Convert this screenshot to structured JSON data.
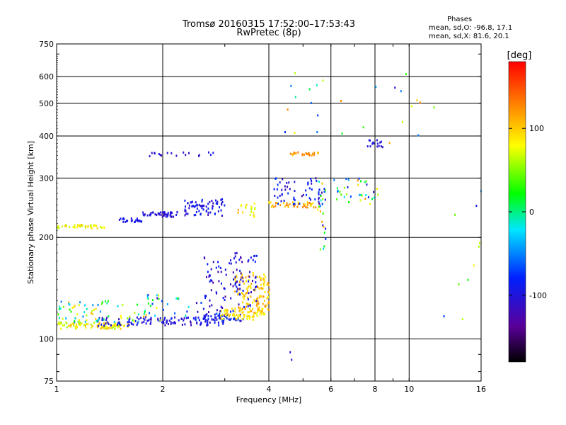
{
  "header": {
    "title_line1": "Tromsø 20160315 17:52:00–17:53:43",
    "title_line2": "RwPretec (8p)"
  },
  "info": {
    "heading": "Phases",
    "line1": "mean, sd,O: -96.8, 17.1",
    "line2": "mean, sd,X:  81.6, 20.1"
  },
  "colorbar": {
    "unit": "[deg]",
    "range": [
      -180,
      180
    ],
    "ticks": [
      {
        "value": 100,
        "label": "100"
      },
      {
        "value": 0,
        "label": "0"
      },
      {
        "value": -100,
        "label": "-100"
      }
    ]
  },
  "chart_data": {
    "type": "scatter",
    "xlabel": "Frequency [MHz]",
    "ylabel": "Stationary phase Virtual Height [km]",
    "xscale": "log",
    "yscale": "log",
    "xlim": [
      1,
      16
    ],
    "ylim": [
      75,
      750
    ],
    "xticks": [
      {
        "value": 1,
        "label": "1"
      },
      {
        "value": 2,
        "label": "2"
      },
      {
        "value": 4,
        "label": "4"
      },
      {
        "value": 6,
        "label": "6"
      },
      {
        "value": 8,
        "label": "8"
      },
      {
        "value": 10,
        "label": "10"
      },
      {
        "value": 16,
        "label": "16"
      }
    ],
    "yticks": [
      {
        "value": 75,
        "label": "75"
      },
      {
        "value": 100,
        "label": "100"
      },
      {
        "value": 200,
        "label": "200"
      },
      {
        "value": 300,
        "label": "300"
      },
      {
        "value": 400,
        "label": "400"
      },
      {
        "value": 500,
        "label": "500"
      },
      {
        "value": 600,
        "label": "600"
      },
      {
        "value": 750,
        "label": "750"
      }
    ],
    "grid": true,
    "color_by": "phase [deg]",
    "groups": [
      {
        "x_range": [
          1.0,
          1.6
        ],
        "y_range": [
          107,
          112
        ],
        "n": 90,
        "phase_range": [
          50,
          110
        ]
      },
      {
        "x_range": [
          1.3,
          3.0
        ],
        "y_range": [
          109,
          116
        ],
        "n": 120,
        "phase_range": [
          -120,
          -80
        ]
      },
      {
        "x_range": [
          2.6,
          3.4
        ],
        "y_range": [
          113,
          119
        ],
        "n": 50,
        "phase_range": [
          -110,
          -60
        ]
      },
      {
        "x_range": [
          2.9,
          3.9
        ],
        "y_range": [
          114,
          123
        ],
        "n": 70,
        "phase_range": [
          70,
          110
        ]
      },
      {
        "x_range": [
          3.2,
          4.05
        ],
        "y_range": [
          120,
          158
        ],
        "n": 120,
        "phase_range": [
          80,
          125
        ]
      },
      {
        "x_range": [
          2.6,
          3.7
        ],
        "y_range": [
          120,
          180
        ],
        "n": 110,
        "phase_range": [
          -130,
          -80
        ]
      },
      {
        "x_range": [
          1.0,
          1.8
        ],
        "y_range": [
          112,
          130
        ],
        "n": 70,
        "phase_range": [
          -60,
          110
        ]
      },
      {
        "x_range": [
          1.8,
          2.6
        ],
        "y_range": [
          113,
          135
        ],
        "n": 30,
        "phase_range": [
          -120,
          80
        ]
      },
      {
        "x_range": [
          1.0,
          1.4
        ],
        "y_range": [
          213,
          218
        ],
        "n": 40,
        "phase_range": [
          60,
          110
        ]
      },
      {
        "x_range": [
          1.5,
          1.75
        ],
        "y_range": [
          222,
          228
        ],
        "n": 25,
        "phase_range": [
          -110,
          -80
        ]
      },
      {
        "x_range": [
          1.75,
          2.2
        ],
        "y_range": [
          230,
          238
        ],
        "n": 50,
        "phase_range": [
          -120,
          -90
        ]
      },
      {
        "x_range": [
          2.3,
          3.0
        ],
        "y_range": [
          232,
          260
        ],
        "n": 70,
        "phase_range": [
          -120,
          -80
        ]
      },
      {
        "x_range": [
          3.2,
          3.7
        ],
        "y_range": [
          230,
          255
        ],
        "n": 20,
        "phase_range": [
          60,
          120
        ]
      },
      {
        "x_range": [
          1.8,
          2.8
        ],
        "y_range": [
          345,
          358
        ],
        "n": 18,
        "phase_range": [
          -120,
          -90
        ]
      },
      {
        "x_range": [
          4.0,
          5.6
        ],
        "y_range": [
          245,
          255
        ],
        "n": 45,
        "phase_range": [
          80,
          140
        ]
      },
      {
        "x_range": [
          4.1,
          5.8
        ],
        "y_range": [
          250,
          300
        ],
        "n": 60,
        "phase_range": [
          -120,
          -70
        ]
      },
      {
        "x_range": [
          4.6,
          5.6
        ],
        "y_range": [
          350,
          358
        ],
        "n": 25,
        "phase_range": [
          100,
          140
        ]
      },
      {
        "x_range": [
          5.5,
          5.8
        ],
        "y_range": [
          180,
          300
        ],
        "n": 25,
        "phase_range": [
          -120,
          120
        ]
      },
      {
        "x_range": [
          6.1,
          8.3
        ],
        "y_range": [
          250,
          300
        ],
        "n": 35,
        "phase_range": [
          -120,
          130
        ]
      },
      {
        "x_range": [
          7.5,
          8.5
        ],
        "y_range": [
          370,
          390
        ],
        "n": 15,
        "phase_range": [
          -110,
          -90
        ]
      },
      {
        "x_range": [
          4.4,
          6.0
        ],
        "y_range": [
          400,
          620
        ],
        "n": 12,
        "phase_range": [
          -110,
          140
        ]
      },
      {
        "x_range": [
          6.0,
          13.0
        ],
        "y_range": [
          380,
          620
        ],
        "n": 14,
        "phase_range": [
          -110,
          140
        ]
      },
      {
        "x_range": [
          12.5,
          16.0
        ],
        "y_range": [
          110,
          280
        ],
        "n": 10,
        "phase_range": [
          -110,
          140
        ]
      },
      {
        "x_range": [
          4.6,
          4.7
        ],
        "y_range": [
          86,
          92
        ],
        "n": 2,
        "phase_range": [
          -110,
          -100
        ]
      }
    ]
  }
}
